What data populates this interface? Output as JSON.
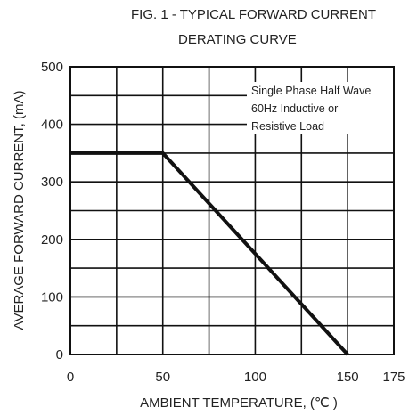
{
  "chart_data": {
    "type": "line",
    "title": [
      "FIG. 1 - TYPICAL FORWARD CURRENT",
      "DERATING CURVE"
    ],
    "xlabel": "AMBIENT TEMPERATURE, (℃ )",
    "ylabel": "AVERAGE FORWARD CURRENT, (mA)",
    "xlim": [
      0,
      175
    ],
    "ylim": [
      0,
      500
    ],
    "x_ticks": [
      "0",
      "50",
      "100",
      "150",
      "175"
    ],
    "x_tick_values": [
      0,
      50,
      100,
      150,
      175
    ],
    "y_ticks": [
      "0",
      "100",
      "200",
      "300",
      "400",
      "500"
    ],
    "y_tick_values": [
      0,
      100,
      200,
      300,
      400,
      500
    ],
    "x_grid_step": 25,
    "y_grid_step": 50,
    "grid": true,
    "series": [
      {
        "x": [
          0,
          50,
          150
        ],
        "y": [
          350,
          350,
          0
        ]
      }
    ],
    "annotation": [
      "Single Phase Half Wave",
      "60Hz Inductive or",
      "Resistive Load"
    ]
  }
}
